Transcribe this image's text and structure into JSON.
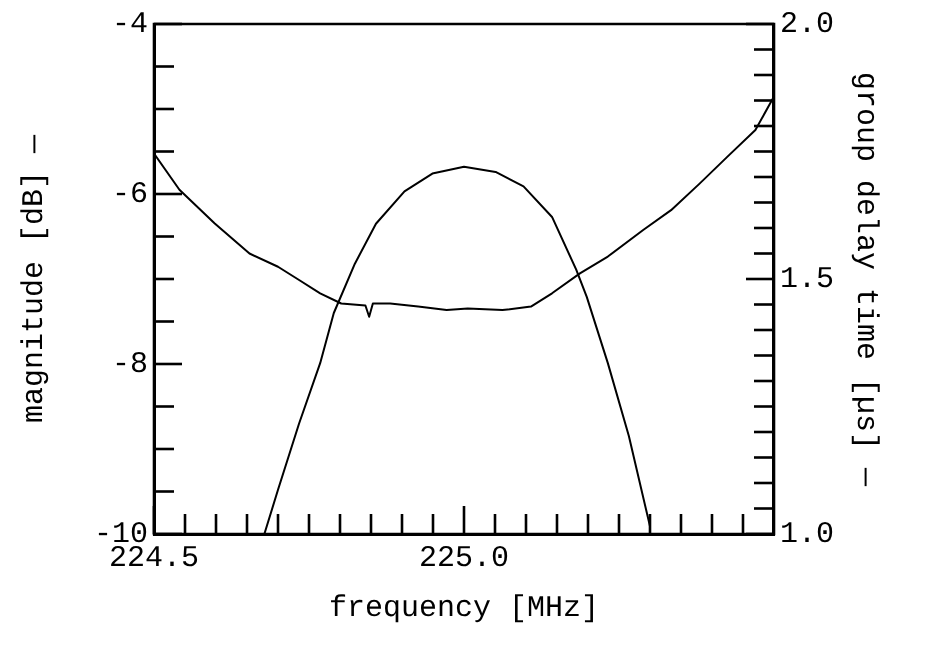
{
  "chart_data": {
    "type": "line",
    "xlabel": "frequency [MHz]",
    "ylabel": "magnitude [dB] —",
    "y2label": "group delay time [µs] —",
    "xlim": [
      224.5,
      225.5
    ],
    "xticks": [
      224.5,
      {
        "value": 224.55,
        "label": null
      },
      {
        "value": 224.6,
        "label": null
      },
      {
        "value": 224.65,
        "label": null
      },
      {
        "value": 224.7,
        "label": null
      },
      {
        "value": 224.75,
        "label": null
      },
      {
        "value": 224.8,
        "label": null
      },
      {
        "value": 224.85,
        "label": null
      },
      {
        "value": 224.9,
        "label": null
      },
      {
        "value": 224.95,
        "label": null
      },
      {
        "value": 225.0,
        "label": "225.0"
      },
      {
        "value": 225.05,
        "label": null
      },
      {
        "value": 225.1,
        "label": null
      },
      {
        "value": 225.15,
        "label": null
      },
      {
        "value": 225.2,
        "label": null
      },
      {
        "value": 225.25,
        "label": null
      },
      {
        "value": 225.3,
        "label": null
      },
      {
        "value": 225.35,
        "label": null
      },
      {
        "value": 225.4,
        "label": null
      },
      {
        "value": 225.45,
        "label": null
      }
    ],
    "ylim": [
      -10,
      -4
    ],
    "yticks": [
      -10,
      {
        "value": -9.5,
        "label": null
      },
      {
        "value": -9,
        "label": null
      },
      {
        "value": -8.5,
        "label": null
      },
      -8,
      {
        "value": -7.5,
        "label": null
      },
      {
        "value": -7,
        "label": null
      },
      {
        "value": -6.5,
        "label": null
      },
      -6,
      {
        "value": -5.5,
        "label": null
      },
      {
        "value": -5,
        "label": null
      },
      {
        "value": -4.5,
        "label": null
      },
      -4
    ],
    "y2lim": [
      1.0,
      2.0
    ],
    "y2ticks": [
      {
        "value": 1.0,
        "label": "1.0"
      },
      {
        "value": 1.05,
        "label": null
      },
      {
        "value": 1.1,
        "label": null
      },
      {
        "value": 1.15,
        "label": null
      },
      {
        "value": 1.2,
        "label": null
      },
      {
        "value": 1.25,
        "label": null
      },
      {
        "value": 1.3,
        "label": null
      },
      {
        "value": 1.35,
        "label": null
      },
      {
        "value": 1.4,
        "label": null
      },
      {
        "value": 1.45,
        "label": null
      },
      1.5,
      {
        "value": 1.55,
        "label": null
      },
      {
        "value": 1.6,
        "label": null
      },
      {
        "value": 1.65,
        "label": null
      },
      {
        "value": 1.7,
        "label": null
      },
      {
        "value": 1.75,
        "label": null
      },
      {
        "value": 1.8,
        "label": null
      },
      {
        "value": 1.85,
        "label": null
      },
      {
        "value": 1.9,
        "label": null
      },
      {
        "value": 1.95,
        "label": null
      },
      {
        "value": 2.0,
        "label": "2.0"
      }
    ],
    "grid": false,
    "legend": false,
    "marker": "none",
    "line_style": "solid",
    "series": [
      {
        "color": "#000000",
        "x": [
          224.678,
          224.7,
          224.734,
          224.768,
          224.79,
          224.824,
          224.858,
          224.904,
          224.949,
          225.0,
          225.051,
          225.096,
          225.142,
          225.181,
          225.198,
          225.232,
          225.266,
          225.3
        ],
        "values": [
          -10,
          -9.48,
          -8.7,
          -7.99,
          -7.4,
          -6.82,
          -6.35,
          -5.97,
          -5.76,
          -5.68,
          -5.74,
          -5.91,
          -6.27,
          -6.89,
          -7.21,
          -7.99,
          -8.85,
          -9.91
        ]
      },
      {
        "color": "#000000",
        "axis": "y2",
        "x": [
          224.5,
          224.541,
          224.598,
          224.654,
          224.7,
          224.734,
          224.768,
          224.802,
          224.841,
          224.847,
          224.853,
          224.881,
          224.926,
          224.972,
          225.006,
          225.062,
          225.108,
          225.142,
          225.187,
          225.232,
          225.289,
          225.334,
          225.38,
          225.425,
          225.47,
          225.5
        ],
        "values": [
          1.746,
          1.675,
          1.609,
          1.55,
          1.524,
          1.498,
          1.472,
          1.452,
          1.448,
          1.426,
          1.452,
          1.452,
          1.446,
          1.439,
          1.442,
          1.439,
          1.446,
          1.472,
          1.511,
          1.544,
          1.596,
          1.635,
          1.687,
          1.74,
          1.792,
          1.858
        ]
      }
    ]
  }
}
